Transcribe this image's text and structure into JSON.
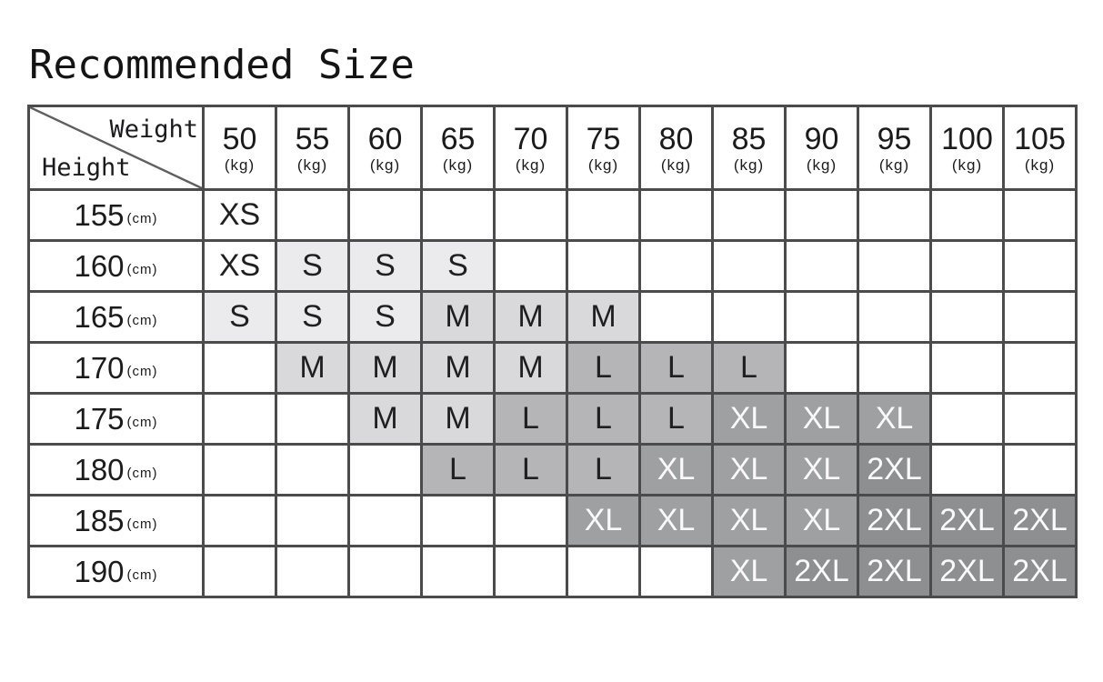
{
  "chart_data": {
    "type": "table",
    "title": "Recommended Size",
    "col_axis_label": "Weight",
    "row_axis_label": "Height",
    "col_unit": "(kg)",
    "row_unit": "(cm)",
    "columns": [
      "50",
      "55",
      "60",
      "65",
      "70",
      "75",
      "80",
      "85",
      "90",
      "95",
      "100",
      "105"
    ],
    "rows": [
      {
        "height": "155",
        "cells": [
          "XS",
          "",
          "",
          "",
          "",
          "",
          "",
          "",
          "",
          "",
          "",
          ""
        ]
      },
      {
        "height": "160",
        "cells": [
          "XS",
          "S",
          "S",
          "S",
          "",
          "",
          "",
          "",
          "",
          "",
          "",
          ""
        ]
      },
      {
        "height": "165",
        "cells": [
          "S",
          "S",
          "S",
          "M",
          "M",
          "M",
          "",
          "",
          "",
          "",
          "",
          ""
        ]
      },
      {
        "height": "170",
        "cells": [
          "",
          "M",
          "M",
          "M",
          "M",
          "L",
          "L",
          "L",
          "",
          "",
          "",
          ""
        ]
      },
      {
        "height": "175",
        "cells": [
          "",
          "",
          "M",
          "M",
          "L",
          "L",
          "L",
          "XL",
          "XL",
          "XL",
          "",
          ""
        ]
      },
      {
        "height": "180",
        "cells": [
          "",
          "",
          "",
          "L",
          "L",
          "L",
          "XL",
          "XL",
          "XL",
          "2XL",
          "",
          ""
        ]
      },
      {
        "height": "185",
        "cells": [
          "",
          "",
          "",
          "",
          "",
          "XL",
          "XL",
          "XL",
          "XL",
          "2XL",
          "2XL",
          "2XL"
        ]
      },
      {
        "height": "190",
        "cells": [
          "",
          "",
          "",
          "",
          "",
          "",
          "",
          "XL",
          "2XL",
          "2XL",
          "2XL",
          "2XL"
        ]
      }
    ],
    "legend_note": "cell shading darkens from size S to 2XL"
  },
  "colors": {
    "grid": "#4b4b4d",
    "diagonal": "#5f5f61",
    "black_text": "#1b1b1d",
    "white_text": "#fafafa",
    "size_bg": {
      "XS": "#ffffff",
      "S": "#ebebed",
      "M": "#d9d9db",
      "L": "#b5b5b7",
      "XL": "#9fa0a2",
      "2XL": "#8e8f91"
    },
    "white_text_sizes": [
      "XL",
      "2XL"
    ]
  }
}
